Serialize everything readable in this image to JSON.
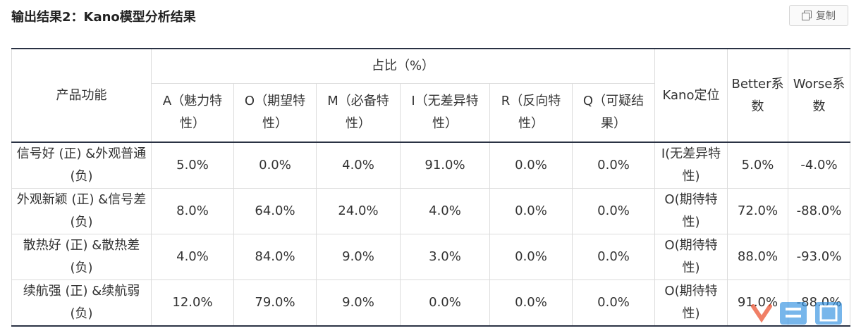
{
  "title": "输出结果2：Kano模型分析结果",
  "copy_button": {
    "label": "复制",
    "icon": "copy-icon"
  },
  "table": {
    "headers": {
      "feature": "产品功能",
      "ratio_group": "占比（%）",
      "kano": "Kano定位",
      "better": "Better系数",
      "worse": "Worse系数",
      "subcols": [
        "A（魅力特性）",
        "O（期望特性）",
        "M（必备特性）",
        "I（无差异特性）",
        "R（反向特性）",
        "Q（可疑结果）"
      ]
    },
    "rows": [
      {
        "feature": "信号好 (正) &外观普通(负)",
        "a": "5.0%",
        "o": "0.0%",
        "m": "4.0%",
        "i": "91.0%",
        "r": "0.0%",
        "q": "0.0%",
        "kano": "I(无差异特性)",
        "better": "5.0%",
        "worse": "-4.0%"
      },
      {
        "feature": "外观新颖 (正) &信号差(负)",
        "a": "8.0%",
        "o": "64.0%",
        "m": "24.0%",
        "i": "4.0%",
        "r": "0.0%",
        "q": "0.0%",
        "kano": "O(期待特性)",
        "better": "72.0%",
        "worse": "-88.0%"
      },
      {
        "feature": "散热好 (正) &散热差(负)",
        "a": "4.0%",
        "o": "84.0%",
        "m": "9.0%",
        "i": "3.0%",
        "r": "0.0%",
        "q": "0.0%",
        "kano": "O(期待特性)",
        "better": "88.0%",
        "worse": "-93.0%"
      },
      {
        "feature": "续航强 (正) &续航弱(负)",
        "a": "12.0%",
        "o": "79.0%",
        "m": "9.0%",
        "i": "0.0%",
        "r": "0.0%",
        "q": "0.0%",
        "kano": "O(期待特性)",
        "better": "91.0%",
        "worse": "-88.0%"
      }
    ]
  },
  "watermark": {
    "mark": "logo",
    "colors": [
      "#e8431f",
      "#2a8de0"
    ]
  }
}
